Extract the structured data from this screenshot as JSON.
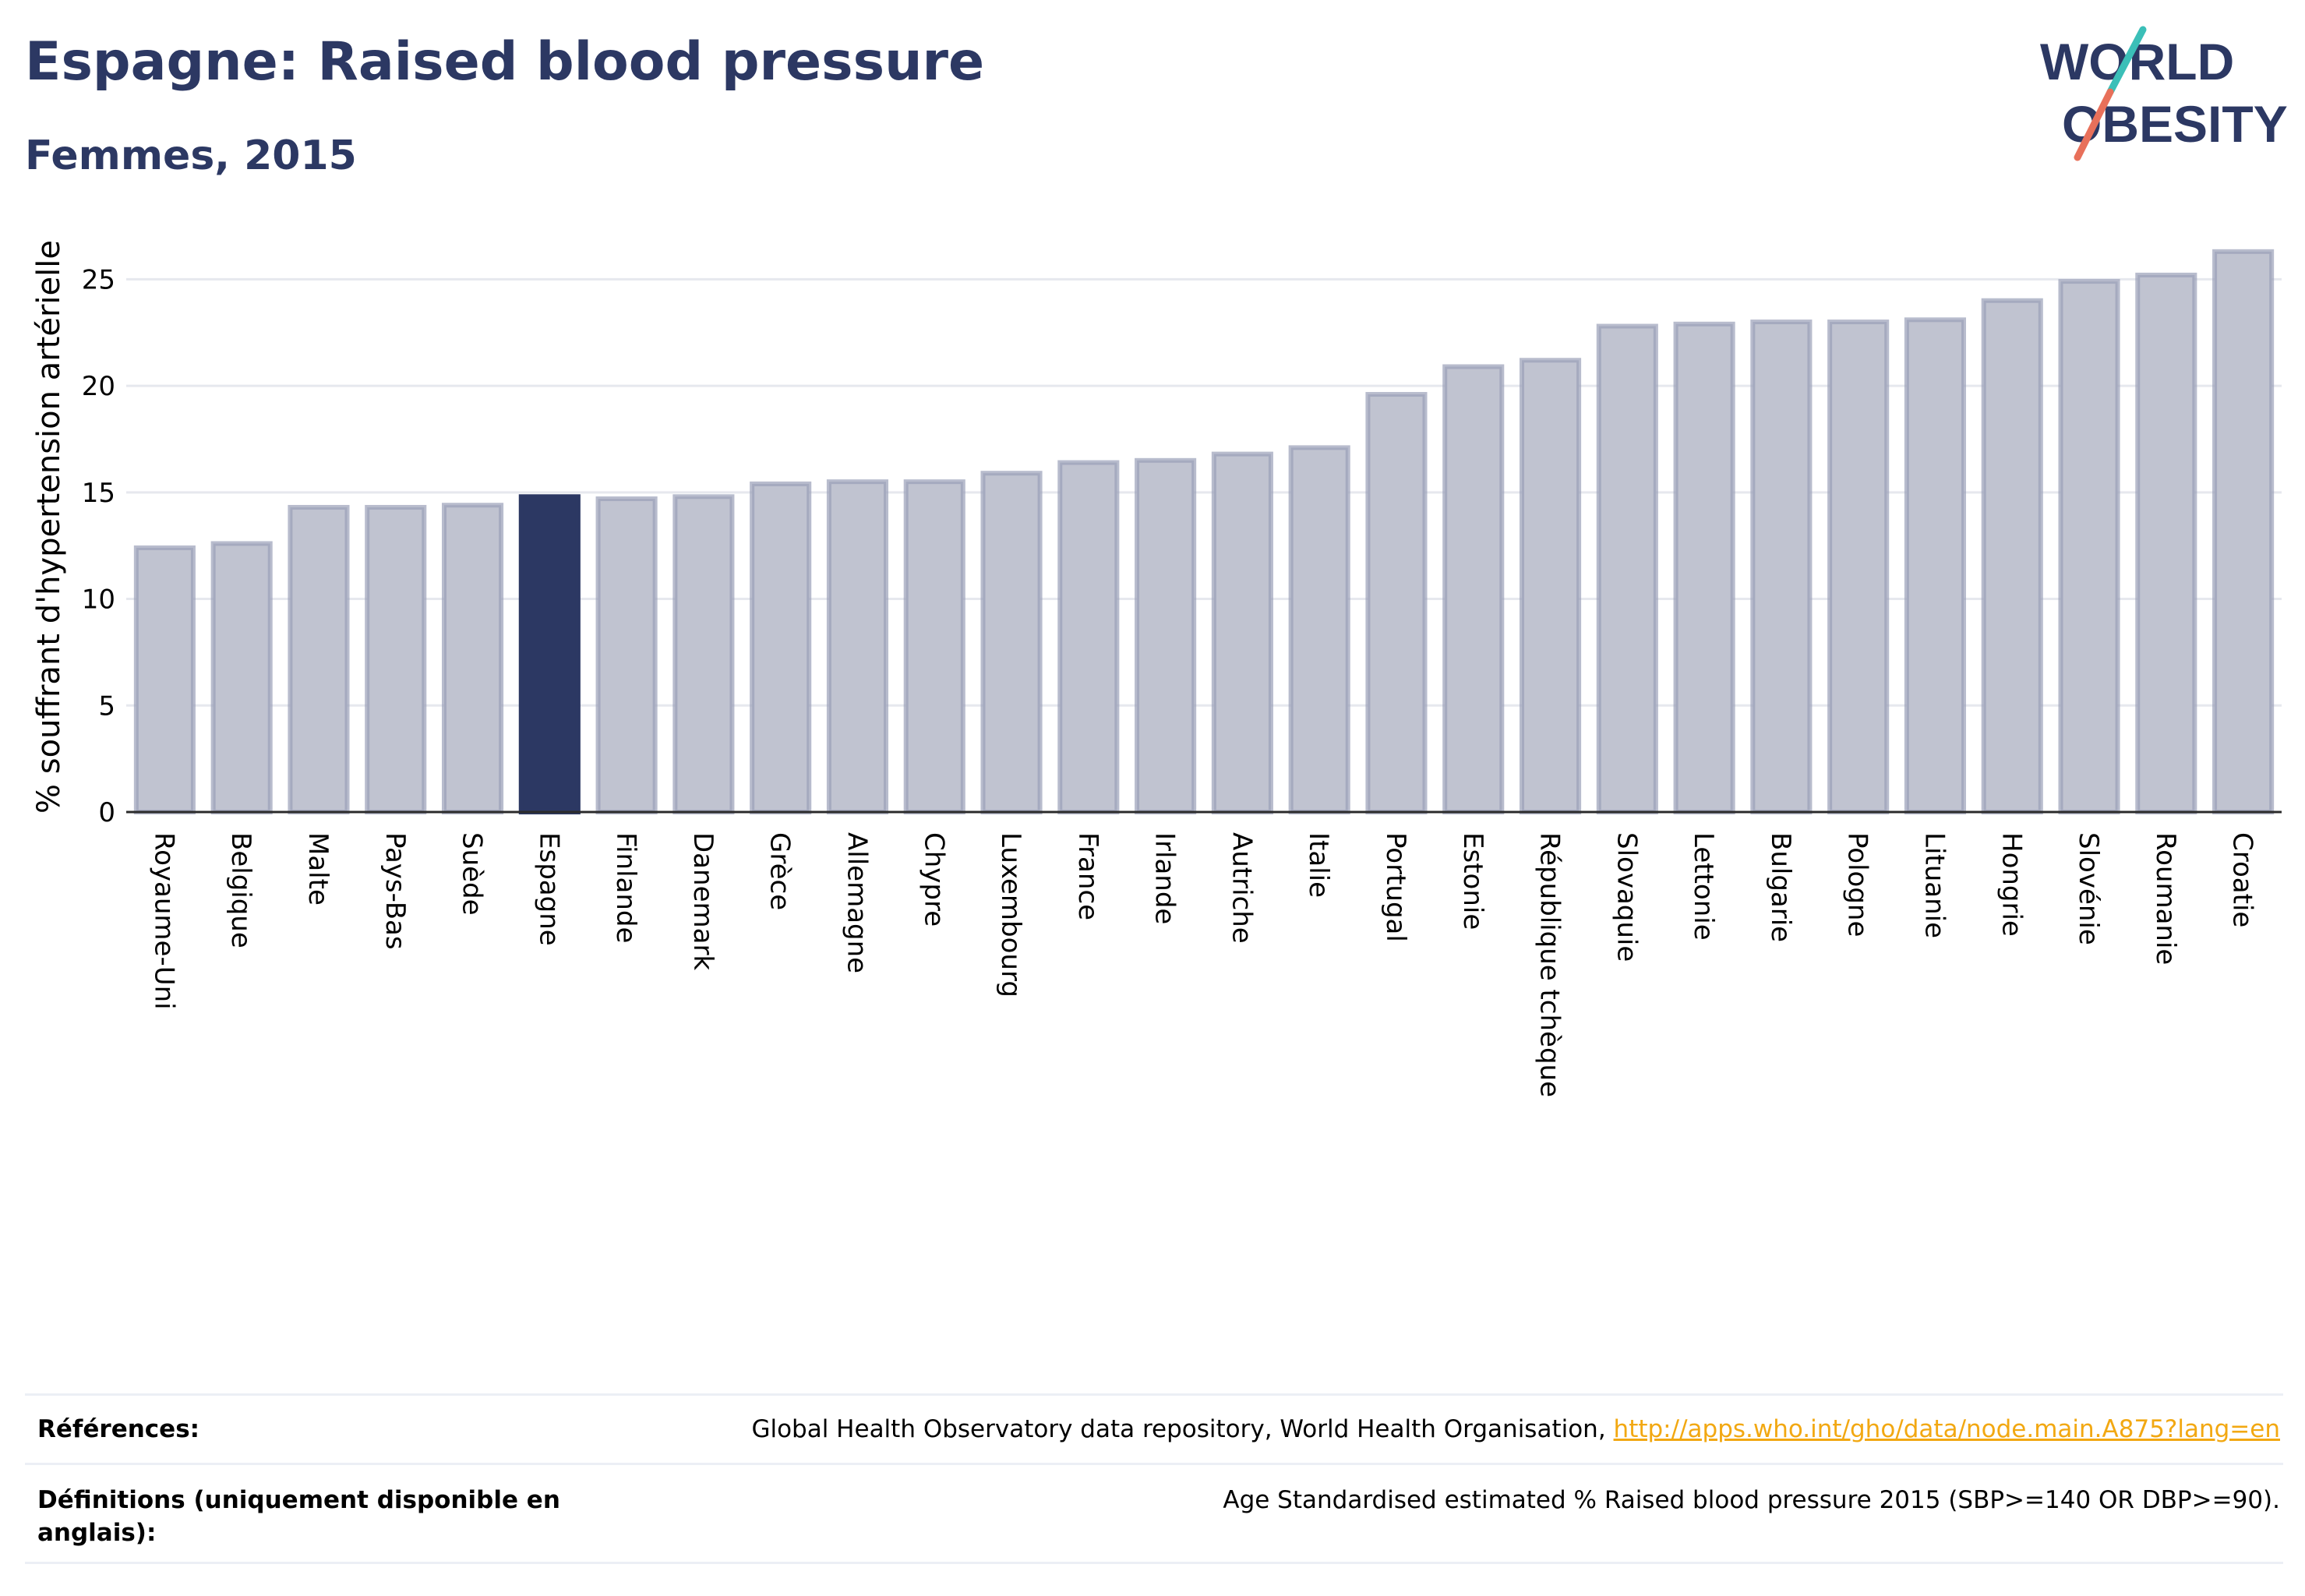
{
  "header": {
    "title": "Espagne: Raised blood pressure",
    "subtitle": "Femmes, 2015"
  },
  "logo": {
    "line1": "WORLD",
    "line2": "OBESITY"
  },
  "colors": {
    "highlight": "#2c3863",
    "bar_fill": "#c0c3d0",
    "bar_stroke": "#9aa0b8",
    "title": "#2c3863",
    "logo_teal": "#3bbfb8",
    "logo_coral": "#e8705a"
  },
  "chart_data": {
    "type": "bar",
    "title": "Espagne: Raised blood pressure",
    "subtitle": "Femmes, 2015",
    "ylabel": "% souffrant d'hypertension artérielle",
    "ylim": [
      0,
      27.5
    ],
    "yticks": [
      0,
      5,
      10,
      15,
      20,
      25
    ],
    "grid": true,
    "highlight": "Espagne",
    "categories": [
      "Royaume-Uni",
      "Belgique",
      "Malte",
      "Pays-Bas",
      "Suède",
      "Espagne",
      "Finlande",
      "Danemark",
      "Grèce",
      "Allemagne",
      "Chypre",
      "Luxembourg",
      "France",
      "Irlande",
      "Autriche",
      "Italie",
      "Portugal",
      "Estonie",
      "République tchèque",
      "Slovaquie",
      "Lettonie",
      "Bulgarie",
      "Pologne",
      "Lituanie",
      "Hongrie",
      "Slovénie",
      "Roumanie",
      "Croatie"
    ],
    "values": [
      12.4,
      12.6,
      14.3,
      14.3,
      14.4,
      14.8,
      14.7,
      14.8,
      15.4,
      15.5,
      15.5,
      15.9,
      16.4,
      16.5,
      16.8,
      17.1,
      19.6,
      20.9,
      21.2,
      22.8,
      22.9,
      23.0,
      23.0,
      23.1,
      24.0,
      24.9,
      25.2,
      26.3
    ]
  },
  "references": {
    "label": "Références:",
    "text": "Global Health Observatory data repository, World Health Organisation, ",
    "link": "http://apps.who.int/gho/data/node.main.A875?lang=en"
  },
  "definitions": {
    "label": "Définitions (uniquement disponible en anglais):",
    "text": "Age Standardised estimated % Raised blood pressure 2015 (SBP>=140 OR DBP>=90)."
  }
}
